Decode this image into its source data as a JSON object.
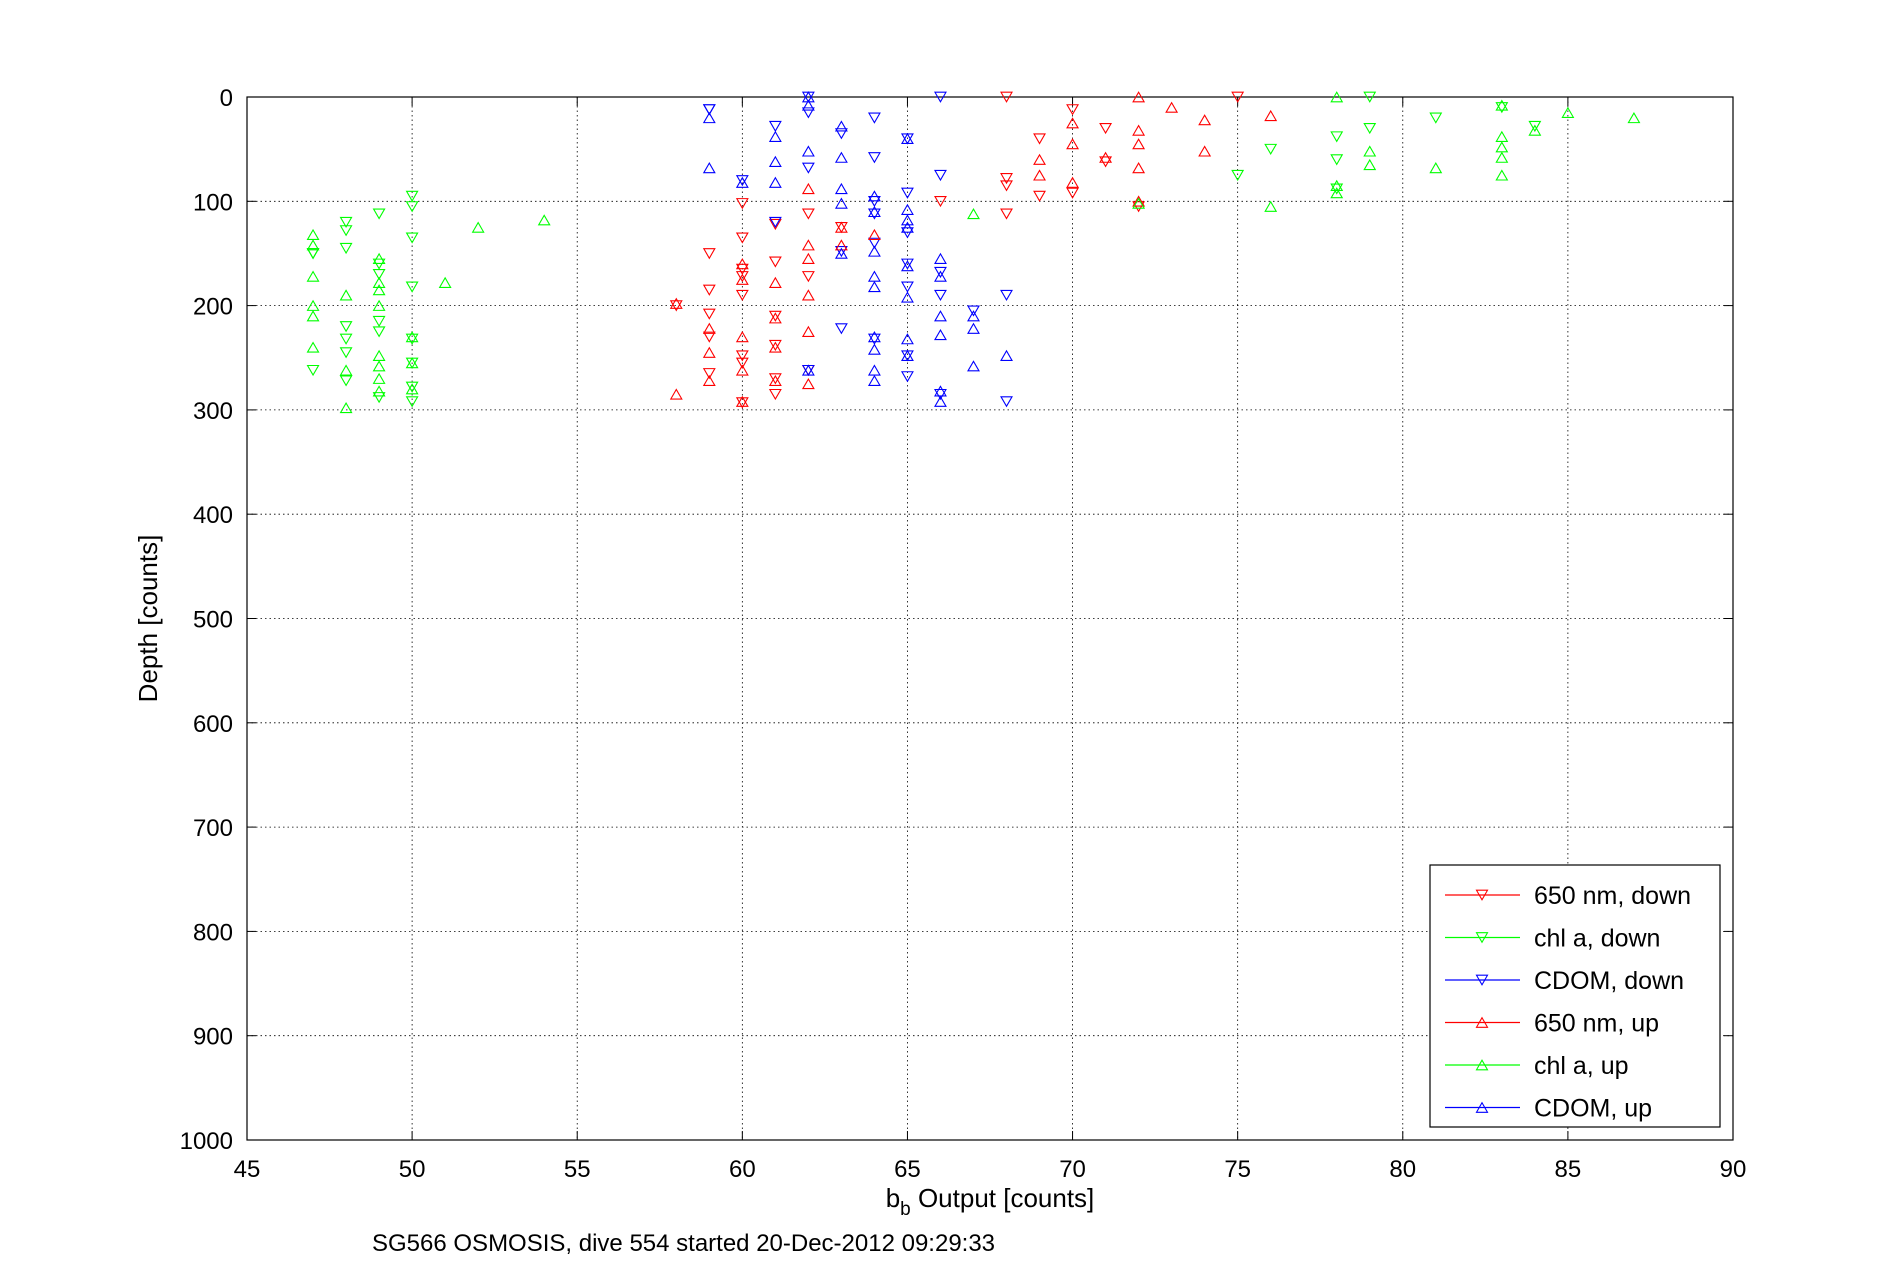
{
  "chart_data": {
    "type": "scatter",
    "title": "",
    "xlabel_main": "b",
    "xlabel_sub": "b",
    "xlabel_rest": " Output [counts]",
    "ylabel": "Depth [counts]",
    "caption": "SG566 OSMOSIS, dive 554 started 20-Dec-2012 09:29:33",
    "xlim": [
      45,
      90
    ],
    "ylim": [
      0,
      1000
    ],
    "y_reversed": true,
    "xticks": [
      45,
      50,
      55,
      60,
      65,
      70,
      75,
      80,
      85,
      90
    ],
    "yticks": [
      0,
      100,
      200,
      300,
      400,
      500,
      600,
      700,
      800,
      900,
      1000
    ],
    "grid": true,
    "legend_position": "bottom-right",
    "series": [
      {
        "name": "650 nm, down",
        "color": "#ff0000",
        "marker": "triangle-down",
        "points": [
          [
            68,
            0
          ],
          [
            75,
            0
          ],
          [
            70,
            12
          ],
          [
            68,
            78
          ],
          [
            68,
            85
          ],
          [
            70,
            92
          ],
          [
            69,
            95
          ],
          [
            69,
            40
          ],
          [
            71,
            30
          ],
          [
            71,
            62
          ],
          [
            72,
            105
          ],
          [
            66,
            100
          ],
          [
            68,
            112
          ],
          [
            60,
            102
          ],
          [
            62,
            112
          ],
          [
            61,
            122
          ],
          [
            60,
            135
          ],
          [
            59,
            150
          ],
          [
            60,
            165
          ],
          [
            61,
            158
          ],
          [
            60,
            172
          ],
          [
            59,
            185
          ],
          [
            62,
            172
          ],
          [
            61,
            210
          ],
          [
            60,
            190
          ],
          [
            59,
            208
          ],
          [
            58,
            200
          ],
          [
            59,
            230
          ],
          [
            60,
            248
          ],
          [
            60,
            255
          ],
          [
            61,
            238
          ],
          [
            59,
            265
          ],
          [
            61,
            270
          ],
          [
            62,
            262
          ],
          [
            61,
            285
          ],
          [
            60,
            293
          ],
          [
            63,
            125
          ]
        ]
      },
      {
        "name": "chl a, down",
        "color": "#00ff00",
        "marker": "triangle-down",
        "points": [
          [
            79,
            0
          ],
          [
            81,
            20
          ],
          [
            78,
            38
          ],
          [
            79,
            30
          ],
          [
            78,
            60
          ],
          [
            78,
            88
          ],
          [
            76,
            50
          ],
          [
            75,
            75
          ],
          [
            83,
            10
          ],
          [
            84,
            28
          ],
          [
            50,
            95
          ],
          [
            50,
            105
          ],
          [
            49,
            112
          ],
          [
            48,
            120
          ],
          [
            48,
            128
          ],
          [
            47,
            150
          ],
          [
            48,
            145
          ],
          [
            50,
            135
          ],
          [
            49,
            160
          ],
          [
            49,
            170
          ],
          [
            50,
            182
          ],
          [
            48,
            220
          ],
          [
            49,
            215
          ],
          [
            49,
            225
          ],
          [
            48,
            232
          ],
          [
            48,
            245
          ],
          [
            50,
            232
          ],
          [
            47,
            262
          ],
          [
            48,
            272
          ],
          [
            50,
            255
          ],
          [
            49,
            288
          ],
          [
            50,
            278
          ],
          [
            50,
            292
          ],
          [
            47,
            150
          ]
        ]
      },
      {
        "name": "CDOM, down",
        "color": "#0000ff",
        "marker": "triangle-down",
        "points": [
          [
            62,
            0
          ],
          [
            66,
            0
          ],
          [
            59,
            12
          ],
          [
            62,
            15
          ],
          [
            61,
            28
          ],
          [
            63,
            35
          ],
          [
            64,
            20
          ],
          [
            65,
            40
          ],
          [
            64,
            58
          ],
          [
            62,
            68
          ],
          [
            60,
            80
          ],
          [
            61,
            120
          ],
          [
            63,
            148
          ],
          [
            64,
            100
          ],
          [
            65,
            92
          ],
          [
            66,
            75
          ],
          [
            64,
            112
          ],
          [
            64,
            140
          ],
          [
            65,
            130
          ],
          [
            65,
            160
          ],
          [
            66,
            168
          ],
          [
            65,
            182
          ],
          [
            66,
            190
          ],
          [
            67,
            205
          ],
          [
            68,
            190
          ],
          [
            63,
            222
          ],
          [
            64,
            232
          ],
          [
            65,
            248
          ],
          [
            66,
            285
          ],
          [
            65,
            268
          ],
          [
            62,
            262
          ],
          [
            68,
            292
          ],
          [
            59,
            12
          ]
        ]
      },
      {
        "name": "650 nm, up",
        "color": "#ff0000",
        "marker": "triangle-up",
        "points": [
          [
            72,
            0
          ],
          [
            73,
            10
          ],
          [
            74,
            22
          ],
          [
            74,
            52
          ],
          [
            76,
            18
          ],
          [
            72,
            32
          ],
          [
            72,
            45
          ],
          [
            72,
            68
          ],
          [
            70,
            25
          ],
          [
            70,
            45
          ],
          [
            70,
            82
          ],
          [
            69,
            60
          ],
          [
            69,
            75
          ],
          [
            71,
            58
          ],
          [
            72,
            100
          ],
          [
            62,
            88
          ],
          [
            63,
            125
          ],
          [
            64,
            132
          ],
          [
            62,
            142
          ],
          [
            61,
            178
          ],
          [
            62,
            155
          ],
          [
            60,
            160
          ],
          [
            60,
            175
          ],
          [
            61,
            212
          ],
          [
            62,
            190
          ],
          [
            62,
            225
          ],
          [
            58,
            198
          ],
          [
            59,
            222
          ],
          [
            59,
            245
          ],
          [
            59,
            272
          ],
          [
            58,
            285
          ],
          [
            60,
            230
          ],
          [
            60,
            262
          ],
          [
            61,
            240
          ],
          [
            61,
            272
          ],
          [
            62,
            275
          ],
          [
            60,
            292
          ],
          [
            63,
            142
          ]
        ]
      },
      {
        "name": "chl a, up",
        "color": "#00ff00",
        "marker": "triangle-up",
        "points": [
          [
            78,
            0
          ],
          [
            83,
            8
          ],
          [
            83,
            38
          ],
          [
            83,
            48
          ],
          [
            83,
            58
          ],
          [
            83,
            75
          ],
          [
            84,
            32
          ],
          [
            85,
            15
          ],
          [
            87,
            20
          ],
          [
            81,
            68
          ],
          [
            79,
            52
          ],
          [
            79,
            65
          ],
          [
            78,
            85
          ],
          [
            78,
            92
          ],
          [
            76,
            105
          ],
          [
            72,
            102
          ],
          [
            67,
            112
          ],
          [
            54,
            118
          ],
          [
            52,
            125
          ],
          [
            51,
            178
          ],
          [
            47,
            132
          ],
          [
            47,
            142
          ],
          [
            47,
            172
          ],
          [
            47,
            200
          ],
          [
            47,
            210
          ],
          [
            48,
            190
          ],
          [
            47,
            240
          ],
          [
            48,
            262
          ],
          [
            48,
            298
          ],
          [
            49,
            155
          ],
          [
            49,
            178
          ],
          [
            49,
            185
          ],
          [
            49,
            200
          ],
          [
            49,
            248
          ],
          [
            49,
            258
          ],
          [
            49,
            270
          ],
          [
            49,
            282
          ],
          [
            50,
            230
          ],
          [
            50,
            255
          ],
          [
            50,
            280
          ]
        ]
      },
      {
        "name": "CDOM, up",
        "color": "#0000ff",
        "marker": "triangle-up",
        "points": [
          [
            62,
            0
          ],
          [
            62,
            8
          ],
          [
            62,
            52
          ],
          [
            61,
            38
          ],
          [
            61,
            62
          ],
          [
            61,
            82
          ],
          [
            59,
            20
          ],
          [
            59,
            68
          ],
          [
            60,
            82
          ],
          [
            63,
            28
          ],
          [
            63,
            58
          ],
          [
            63,
            88
          ],
          [
            63,
            102
          ],
          [
            64,
            95
          ],
          [
            64,
            110
          ],
          [
            65,
            118
          ],
          [
            65,
            40
          ],
          [
            65,
            108
          ],
          [
            65,
            125
          ],
          [
            64,
            148
          ],
          [
            64,
            172
          ],
          [
            64,
            182
          ],
          [
            65,
            162
          ],
          [
            65,
            192
          ],
          [
            66,
            155
          ],
          [
            66,
            172
          ],
          [
            66,
            210
          ],
          [
            67,
            210
          ],
          [
            67,
            222
          ],
          [
            66,
            228
          ],
          [
            64,
            230
          ],
          [
            64,
            242
          ],
          [
            65,
            232
          ],
          [
            65,
            248
          ],
          [
            64,
            262
          ],
          [
            64,
            272
          ],
          [
            67,
            258
          ],
          [
            68,
            248
          ],
          [
            66,
            282
          ],
          [
            66,
            292
          ],
          [
            63,
            150
          ],
          [
            62,
            262
          ]
        ]
      }
    ]
  }
}
